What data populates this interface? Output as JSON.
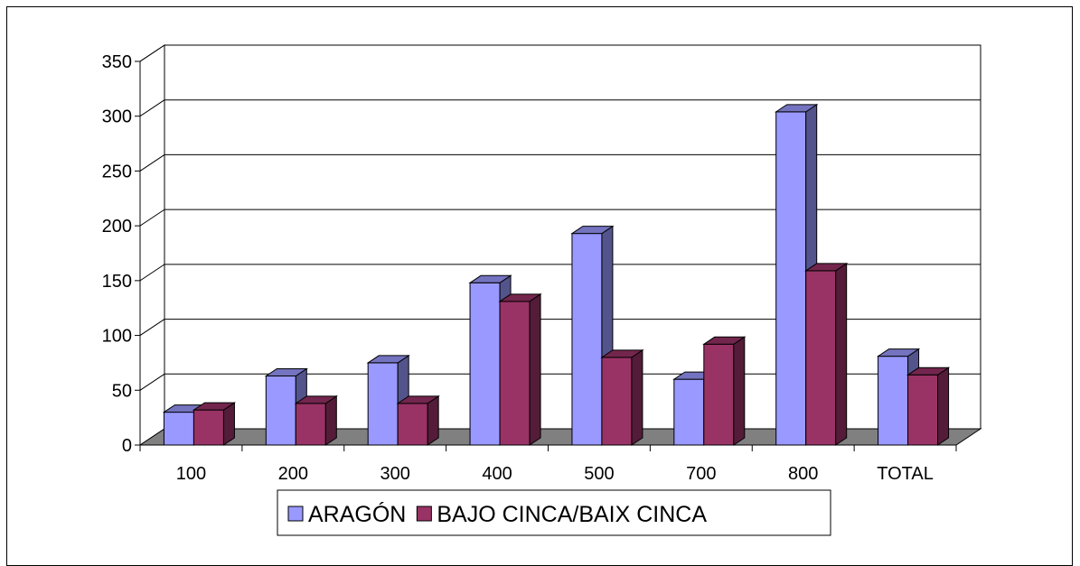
{
  "chart_data": {
    "type": "bar",
    "title": "",
    "xlabel": "",
    "ylabel": "",
    "categories": [
      "100",
      "200",
      "300",
      "400",
      "500",
      "700",
      "800",
      "TOTAL"
    ],
    "series": [
      {
        "name": "ARAGÓN",
        "values": [
          30,
          63,
          75,
          148,
          193,
          60,
          304,
          81
        ],
        "color": "#9999ff"
      },
      {
        "name": "BAJO CINCA/BAIX CINCA",
        "values": [
          32,
          38,
          38,
          131,
          80,
          92,
          159,
          64
        ],
        "color": "#993366"
      }
    ],
    "ylim": [
      0,
      350
    ],
    "yticks": [
      0,
      50,
      100,
      150,
      200,
      250,
      300,
      350
    ],
    "grid": true,
    "legend_position": "bottom",
    "style": "3d-clustered-column",
    "floor_color": "#808080"
  }
}
